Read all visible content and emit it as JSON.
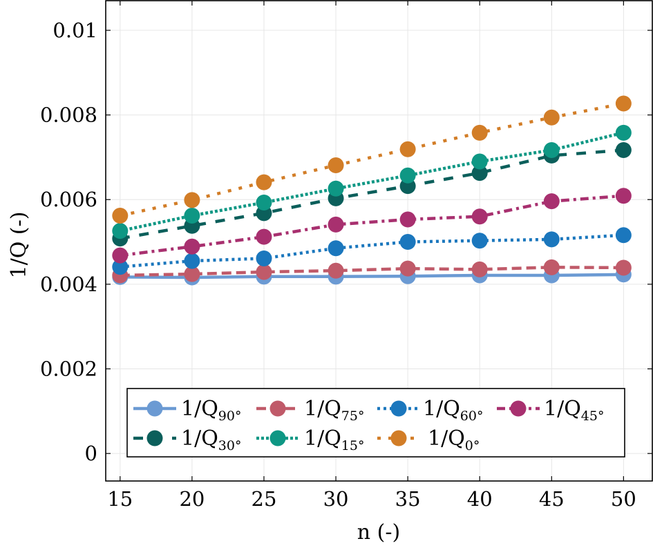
{
  "chart_data": {
    "type": "line",
    "title": "",
    "xlabel": "n (-)",
    "ylabel": "1/Q (-)",
    "x": [
      15,
      20,
      25,
      30,
      35,
      40,
      45,
      50
    ],
    "xlim": [
      14,
      52
    ],
    "ylim": [
      -0.00065,
      0.0107
    ],
    "xticks": [
      "15",
      "20",
      "25",
      "30",
      "35",
      "40",
      "45",
      "50"
    ],
    "xtick_values": [
      15,
      20,
      25,
      30,
      35,
      40,
      45,
      50
    ],
    "yticks": [
      "0",
      "0.002",
      "0.004",
      "0.006",
      "0.008",
      "0.01"
    ],
    "ytick_values": [
      0,
      0.002,
      0.004,
      0.006,
      0.008,
      0.01
    ],
    "grid": true,
    "legend_position": "bottom-center",
    "series": [
      {
        "name": "1/Q",
        "sub": "90°",
        "color": "#6b9ad3",
        "dash": "solid",
        "values": [
          0.00417,
          0.00416,
          0.00418,
          0.00418,
          0.00419,
          0.00421,
          0.00421,
          0.00423
        ]
      },
      {
        "name": "1/Q",
        "sub": "75°",
        "color": "#c05a69",
        "dash": "dashed",
        "values": [
          0.00421,
          0.00424,
          0.00429,
          0.00432,
          0.00437,
          0.00435,
          0.0044,
          0.00439
        ]
      },
      {
        "name": "1/Q",
        "sub": "60°",
        "color": "#1b77bd",
        "dash": "dotted",
        "values": [
          0.00441,
          0.00455,
          0.00461,
          0.00485,
          0.005,
          0.00503,
          0.00506,
          0.00516
        ]
      },
      {
        "name": "1/Q",
        "sub": "45°",
        "color": "#a8306f",
        "dash": "dashdot",
        "values": [
          0.00468,
          0.00489,
          0.00512,
          0.00541,
          0.00553,
          0.0056,
          0.00596,
          0.00609
        ]
      },
      {
        "name": "1/Q",
        "sub": "30°",
        "color": "#0b5f5b",
        "dash": "loosedash",
        "values": [
          0.00508,
          0.00538,
          0.00568,
          0.00603,
          0.00632,
          0.00663,
          0.00704,
          0.00717
        ]
      },
      {
        "name": "1/Q",
        "sub": "15°",
        "color": "#0e9784",
        "dash": "densedot",
        "values": [
          0.00526,
          0.00562,
          0.00593,
          0.00626,
          0.00657,
          0.0069,
          0.00717,
          0.00758
        ]
      },
      {
        "name": "1/Q",
        "sub": "0°",
        "color": "#d27d27",
        "dash": "loosedot",
        "values": [
          0.00562,
          0.00599,
          0.00641,
          0.00681,
          0.00719,
          0.00758,
          0.00794,
          0.00827
        ]
      }
    ]
  }
}
